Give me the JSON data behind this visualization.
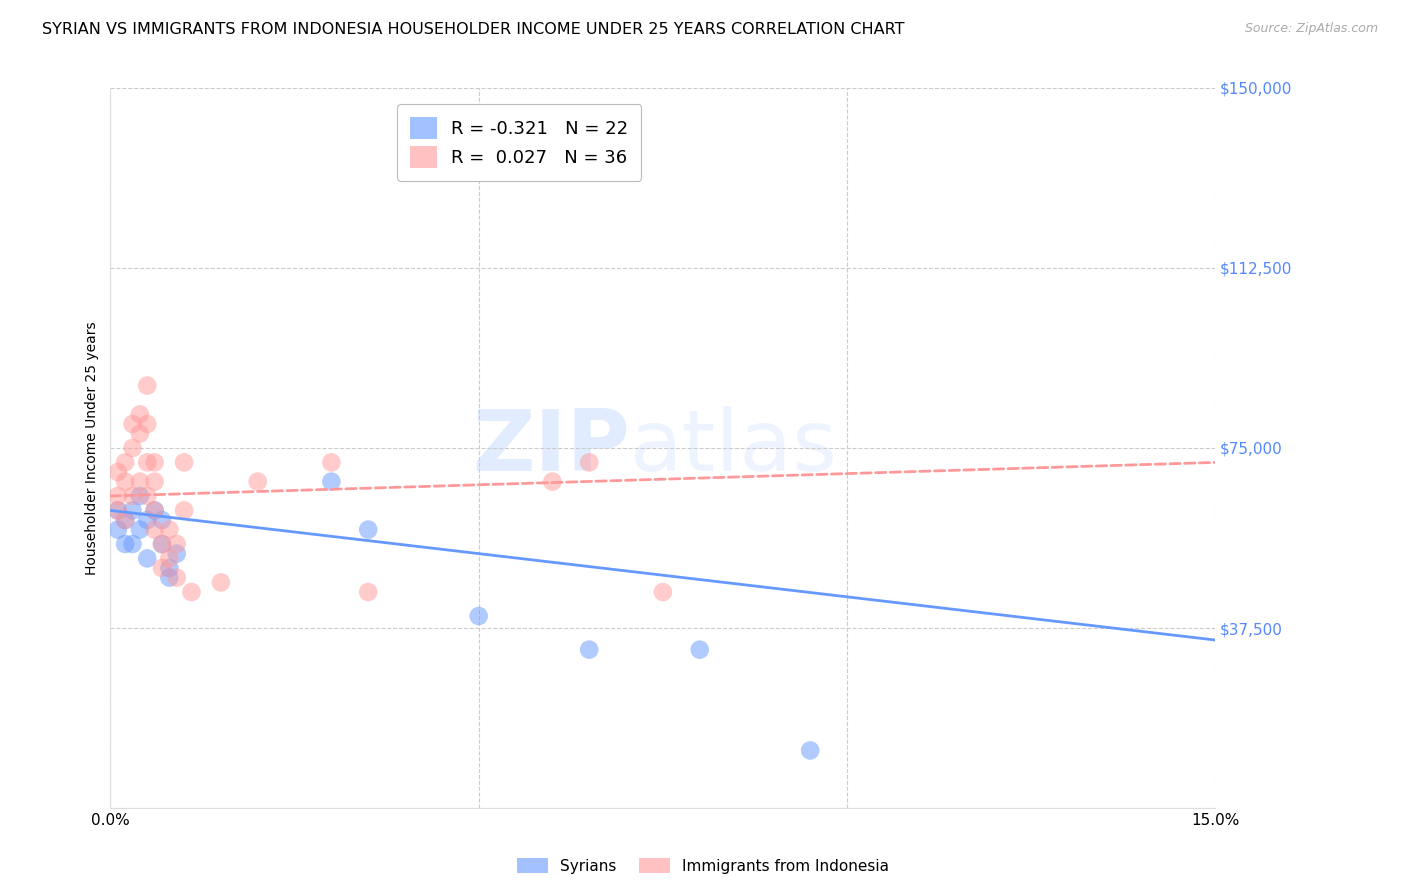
{
  "title": "SYRIAN VS IMMIGRANTS FROM INDONESIA HOUSEHOLDER INCOME UNDER 25 YEARS CORRELATION CHART",
  "source": "Source: ZipAtlas.com",
  "ylabel": "Householder Income Under 25 years",
  "xlim": [
    0.0,
    0.15
  ],
  "ylim": [
    0,
    150000
  ],
  "yticks": [
    0,
    37500,
    75000,
    112500,
    150000
  ],
  "ytick_labels": [
    "",
    "$37,500",
    "$75,000",
    "$112,500",
    "$150,000"
  ],
  "xticks": [
    0.0,
    0.05,
    0.1,
    0.15
  ],
  "xtick_labels": [
    "0.0%",
    "",
    "",
    "15.0%"
  ],
  "background_color": "#ffffff",
  "grid_color": "#cccccc",
  "syrian_color": "#6699ff",
  "indonesia_color": "#ff9999",
  "syrian_R": -0.321,
  "syrian_N": 22,
  "indonesia_R": 0.027,
  "indonesia_N": 36,
  "axis_color": "#5588ff",
  "syrians_x": [
    0.001,
    0.001,
    0.002,
    0.002,
    0.003,
    0.003,
    0.004,
    0.004,
    0.005,
    0.005,
    0.006,
    0.007,
    0.007,
    0.008,
    0.008,
    0.009,
    0.03,
    0.035,
    0.05,
    0.065,
    0.08,
    0.095
  ],
  "syrians_y": [
    58000,
    62000,
    55000,
    60000,
    62000,
    55000,
    65000,
    58000,
    60000,
    52000,
    62000,
    60000,
    55000,
    50000,
    48000,
    53000,
    68000,
    58000,
    40000,
    33000,
    33000,
    12000
  ],
  "indonesia_x": [
    0.001,
    0.001,
    0.001,
    0.002,
    0.002,
    0.002,
    0.003,
    0.003,
    0.003,
    0.004,
    0.004,
    0.004,
    0.005,
    0.005,
    0.005,
    0.005,
    0.006,
    0.006,
    0.006,
    0.006,
    0.007,
    0.007,
    0.008,
    0.008,
    0.009,
    0.009,
    0.01,
    0.01,
    0.011,
    0.015,
    0.02,
    0.03,
    0.035,
    0.06,
    0.065,
    0.075
  ],
  "indonesia_y": [
    62000,
    65000,
    70000,
    68000,
    72000,
    60000,
    75000,
    80000,
    65000,
    82000,
    78000,
    68000,
    80000,
    88000,
    72000,
    65000,
    62000,
    68000,
    72000,
    58000,
    50000,
    55000,
    52000,
    58000,
    55000,
    48000,
    72000,
    62000,
    45000,
    47000,
    68000,
    72000,
    45000,
    68000,
    72000,
    45000
  ],
  "watermark_zip": "ZIP",
  "watermark_atlas": "atlas",
  "title_fontsize": 11.5,
  "label_fontsize": 10,
  "tick_fontsize": 11
}
